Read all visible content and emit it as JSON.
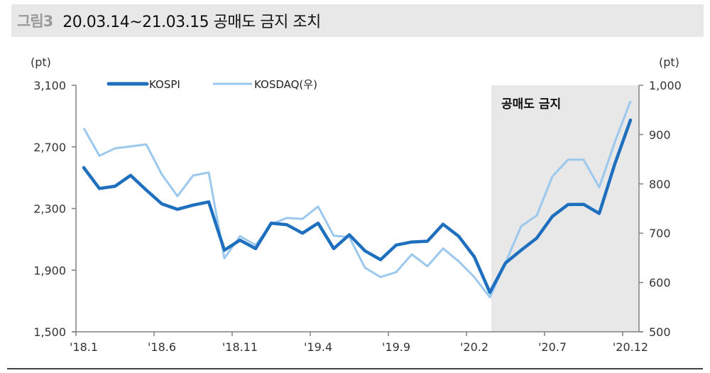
{
  "header": {
    "figure_label": "그림3",
    "title": "20.03.14~21.03.15 공매도 금지 조치"
  },
  "axes": {
    "left_unit": "(pt)",
    "right_unit": "(pt)",
    "left_ticks": [
      "3,100",
      "2,700",
      "2,300",
      "1,900",
      "1,500"
    ],
    "right_ticks": [
      "1,000",
      "900",
      "800",
      "700",
      "600",
      "500"
    ],
    "x_ticks": [
      "'18.1",
      "'18.6",
      "'18.11",
      "'19.4",
      "'19.9",
      "'20.2",
      "'20.7",
      "'20.12"
    ]
  },
  "legend": {
    "kospi": "KOSPI",
    "kosdaq": "KOSDAQ(우)"
  },
  "shaded_region": {
    "label": "공매도 금지",
    "color": "#e8e8e8"
  },
  "colors": {
    "kospi": "#1f6fbf",
    "kosdaq": "#9cc8ee",
    "axis": "#808080"
  },
  "chart_data": {
    "type": "line",
    "title": "20.03.14~21.03.15 공매도 금지 조치",
    "xlabel": "",
    "ylabel": "(pt)",
    "y2label": "(pt)",
    "ylim": [
      1500,
      3100
    ],
    "y2lim": [
      500,
      1000
    ],
    "grid": false,
    "legend_position": "top-left",
    "x": [
      "18.1",
      "18.2",
      "18.3",
      "18.4",
      "18.5",
      "18.6",
      "18.7",
      "18.8",
      "18.9",
      "18.10",
      "18.11",
      "18.12",
      "19.1",
      "19.2",
      "19.3",
      "19.4",
      "19.5",
      "19.6",
      "19.7",
      "19.8",
      "19.9",
      "19.10",
      "19.11",
      "19.12",
      "20.1",
      "20.2",
      "20.3",
      "20.4",
      "20.5",
      "20.6",
      "20.7",
      "20.8",
      "20.9",
      "20.10",
      "20.11",
      "20.12"
    ],
    "x_tick_labels": [
      "'18.1",
      "'18.6",
      "'18.11",
      "'19.4",
      "'19.9",
      "'20.2",
      "'20.7",
      "'20.12"
    ],
    "series": [
      {
        "name": "KOSPI",
        "axis": "left",
        "values": [
          2565,
          2430,
          2445,
          2515,
          2420,
          2330,
          2295,
          2322,
          2343,
          2030,
          2095,
          2040,
          2205,
          2195,
          2140,
          2205,
          2040,
          2130,
          2025,
          1968,
          2063,
          2083,
          2088,
          2198,
          2120,
          1987,
          1755,
          1947,
          2030,
          2108,
          2249,
          2326,
          2327,
          2268,
          2590,
          2874
        ]
      },
      {
        "name": "KOSDAQ(우)",
        "axis": "right",
        "values": [
          913,
          857,
          872,
          876,
          880,
          819,
          775,
          817,
          823,
          649,
          694,
          676,
          718,
          731,
          729,
          754,
          695,
          692,
          630,
          611,
          621,
          657,
          633,
          669,
          643,
          611,
          570,
          640,
          714,
          736,
          815,
          849,
          849,
          793,
          885,
          968
        ]
      }
    ],
    "annotations": [
      {
        "type": "shaded_span",
        "from": "20.3",
        "to": "20.12",
        "label": "공매도 금지"
      }
    ]
  }
}
